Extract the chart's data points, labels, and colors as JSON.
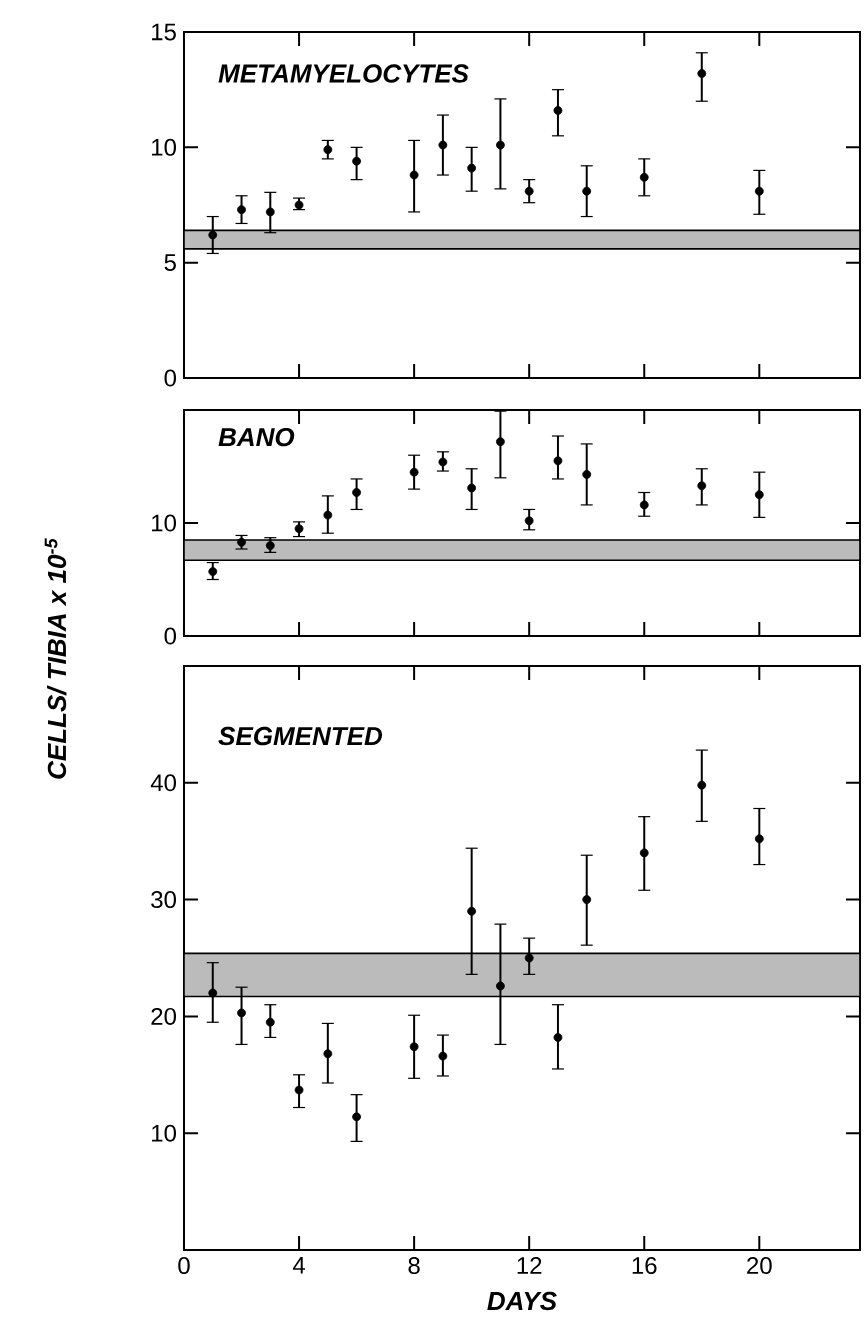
{
  "chart_data": [
    {
      "type": "scatter",
      "title": "METAMYELOCYTES",
      "xlim": [
        0,
        23.5
      ],
      "ylim": [
        0,
        15
      ],
      "xticks": [
        0,
        4,
        8,
        12,
        16,
        20
      ],
      "yticks": [
        0,
        5,
        10,
        15
      ],
      "tick_labels": "y",
      "marker": "circle",
      "series": [
        {
          "color": "#000000",
          "x": [
            1,
            2,
            3,
            4,
            5,
            6,
            8,
            9,
            10,
            11,
            12,
            13,
            14,
            16,
            18,
            20
          ],
          "values": [
            6.2,
            7.3,
            7.2,
            7.5,
            9.9,
            9.4,
            8.8,
            10.1,
            9.1,
            10.1,
            8.1,
            11.6,
            8.1,
            8.7,
            13.2,
            8.1
          ],
          "errors": [
            [
              5.4,
              7.0
            ],
            [
              6.7,
              7.9
            ],
            [
              6.3,
              8.05
            ],
            [
              7.3,
              7.8
            ],
            [
              9.5,
              10.3
            ],
            [
              8.6,
              10.0
            ],
            [
              7.2,
              10.3
            ],
            [
              8.8,
              11.4
            ],
            [
              8.1,
              10.0
            ],
            [
              8.2,
              12.1
            ],
            [
              7.6,
              8.6
            ],
            [
              10.5,
              12.5
            ],
            [
              7.0,
              9.2
            ],
            [
              7.9,
              9.5
            ],
            [
              12.0,
              14.1
            ],
            [
              7.1,
              9.0
            ]
          ]
        }
      ],
      "bands": [
        {
          "axis": "y",
          "from": 5.6,
          "to": 6.4,
          "color": "#bbbbbb"
        }
      ]
    },
    {
      "type": "scatter",
      "title": "BANO",
      "ylabel": "CELLS/ TIBIA x 10$^{-5}$",
      "xlim": [
        0,
        23.5
      ],
      "ylim": [
        0,
        20
      ],
      "xticks": [
        0,
        4,
        8,
        12,
        16,
        20
      ],
      "yticks": [
        0,
        10
      ],
      "tick_labels": "y",
      "marker": "circle",
      "series": [
        {
          "color": "#000000",
          "x": [
            1,
            2,
            3,
            4,
            5,
            6,
            8,
            9,
            10,
            11,
            12,
            13,
            14,
            16,
            18,
            20
          ],
          "values": [
            5.7,
            8.3,
            8.0,
            9.5,
            10.7,
            12.7,
            14.5,
            15.4,
            13.1,
            17.2,
            10.2,
            15.5,
            14.3,
            11.6,
            13.3,
            12.5
          ],
          "errors": [
            [
              5.0,
              6.5
            ],
            [
              7.7,
              8.9
            ],
            [
              7.4,
              8.7
            ],
            [
              8.8,
              10.1
            ],
            [
              9.1,
              12.4
            ],
            [
              11.2,
              13.9
            ],
            [
              13.0,
              16.0
            ],
            [
              14.6,
              16.3
            ],
            [
              11.2,
              14.8
            ],
            [
              14.0,
              19.9
            ],
            [
              9.4,
              11.2
            ],
            [
              13.9,
              17.7
            ],
            [
              11.6,
              17.0
            ],
            [
              10.6,
              12.7
            ],
            [
              11.6,
              14.8
            ],
            [
              10.5,
              14.5
            ]
          ]
        }
      ],
      "bands": [
        {
          "axis": "y",
          "from": 6.7,
          "to": 8.5,
          "color": "#bbbbbb"
        }
      ]
    },
    {
      "type": "scatter",
      "title": "SEGMENTED",
      "xlabel": "DAYS",
      "xlim": [
        0,
        23.5
      ],
      "ylim": [
        0,
        50
      ],
      "xticks": [
        0,
        4,
        8,
        12,
        16,
        20
      ],
      "yticks": [
        10,
        20,
        30,
        40
      ],
      "marker": "circle",
      "series": [
        {
          "color": "#000000",
          "x": [
            1,
            2,
            3,
            4,
            5,
            6,
            8,
            9,
            10,
            11,
            12,
            13,
            14,
            16,
            18,
            20
          ],
          "values": [
            22.0,
            20.3,
            19.5,
            13.7,
            16.8,
            11.4,
            17.4,
            16.6,
            29.0,
            22.6,
            25.0,
            18.2,
            30.0,
            34.0,
            39.8,
            35.2
          ],
          "errors": [
            [
              19.5,
              24.6
            ],
            [
              17.6,
              22.5
            ],
            [
              18.2,
              21.0
            ],
            [
              12.2,
              15.0
            ],
            [
              14.3,
              19.4
            ],
            [
              9.3,
              13.3
            ],
            [
              14.7,
              20.1
            ],
            [
              14.9,
              18.4
            ],
            [
              23.6,
              34.4
            ],
            [
              17.6,
              27.9
            ],
            [
              23.6,
              26.7
            ],
            [
              15.5,
              21.0
            ],
            [
              26.1,
              33.8
            ],
            [
              30.8,
              37.1
            ],
            [
              36.7,
              42.8
            ],
            [
              33.0,
              37.8
            ]
          ]
        }
      ],
      "bands": [
        {
          "axis": "y",
          "from": 21.7,
          "to": 25.4,
          "color": "#bbbbbb"
        }
      ]
    }
  ]
}
